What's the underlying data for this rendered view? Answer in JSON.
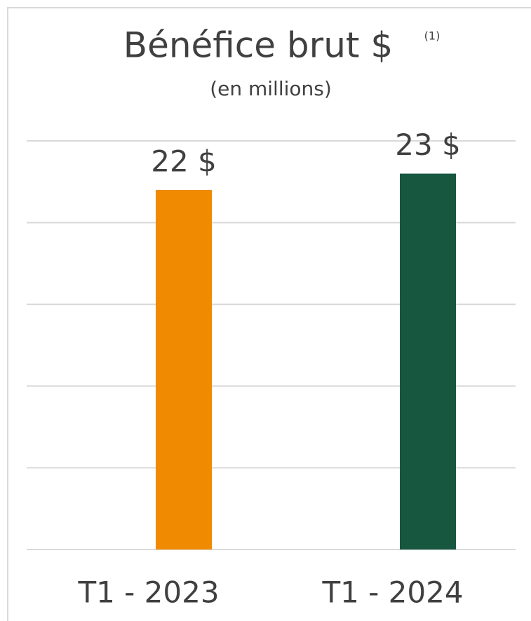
{
  "chart_data": {
    "type": "bar",
    "title": "Bénéfice brut $",
    "title_note": "(1)",
    "subtitle": "(en millions)",
    "categories": [
      "T1 - 2023",
      "T1 - 2024"
    ],
    "values": [
      22,
      23
    ],
    "value_labels": [
      "22 $",
      "23 $"
    ],
    "colors": [
      "#f08a00",
      "#17563f"
    ],
    "ylim": [
      0,
      25
    ],
    "yticks": [
      0,
      5,
      10,
      15,
      20,
      25
    ],
    "grid": true
  }
}
